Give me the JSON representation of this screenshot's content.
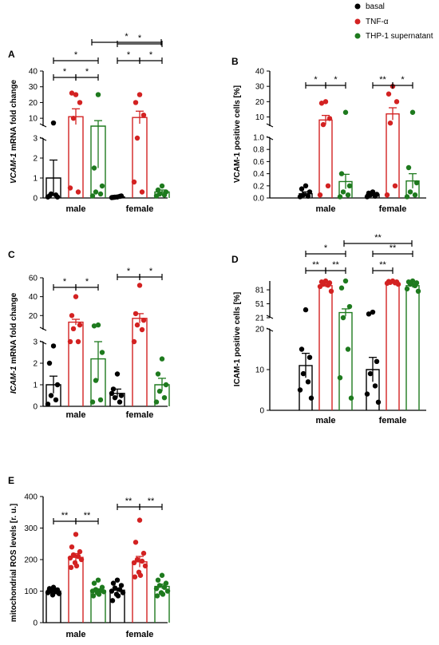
{
  "legend": [
    {
      "label": "basal",
      "color": "#000000"
    },
    {
      "label": "TNF-α",
      "color": "#d32222"
    },
    {
      "label": "THP-1 supernatant",
      "color": "#1e7a1e"
    }
  ],
  "chart_data": [
    {
      "id": "A",
      "type": "scatter",
      "ylabel_italic": "VCAM-1",
      "ylabel": "mRNA fold change",
      "categories": [
        "male",
        "female"
      ],
      "series": [
        {
          "name": "basal",
          "color": "#000000",
          "mean": [
            1.0,
            0.05
          ],
          "sem": [
            0.9,
            0.03
          ],
          "points": [
            [
              7,
              0.1,
              0.05,
              0.2,
              0.15,
              0.05
            ],
            [
              0.05,
              0.03,
              0.1,
              0.04,
              0.08,
              0.02
            ]
          ]
        },
        {
          "name": "TNF-α",
          "color": "#d32222",
          "mean": [
            11,
            10.5
          ],
          "sem": [
            5,
            4
          ],
          "points": [
            [
              25,
              26,
              20,
              10,
              0.3,
              0.5
            ],
            [
              25,
              20,
              12,
              3,
              0.3,
              0.8
            ]
          ]
        },
        {
          "name": "THP-1 supernatant",
          "color": "#1e7a1e",
          "mean": [
            5,
            0.3
          ],
          "sem": [
            3.5,
            0.1
          ],
          "points": [
            [
              25,
              1.5,
              0.6,
              0.3,
              0.2,
              0.1
            ],
            [
              0.6,
              0.4,
              0.3,
              0.2,
              0.15,
              0.1
            ]
          ]
        }
      ],
      "yticks": [
        "0",
        "1",
        "2",
        "3",
        "10",
        "20",
        "30",
        "40"
      ],
      "sig": [
        {
          "from": 0,
          "to": 1,
          "label": "*",
          "level": 0,
          "group": 0
        },
        {
          "from": 1,
          "to": 2,
          "label": "*",
          "level": 0,
          "group": 0
        },
        {
          "from": 0,
          "to": 2,
          "label": "*",
          "level": 1,
          "group": 0
        },
        {
          "from": 0,
          "to": 1,
          "label": "*",
          "level": 0,
          "group": 1
        },
        {
          "from": 1,
          "to": 2,
          "label": "*",
          "level": 0,
          "group": 1
        },
        {
          "from": 0,
          "to": 2,
          "label": "*",
          "level": 1,
          "group": 1
        },
        {
          "label": "*",
          "across": true
        }
      ]
    },
    {
      "id": "B",
      "type": "scatter",
      "ylabel": "VCAM-1 positive cells [%]",
      "categories": [
        "male",
        "female"
      ],
      "series": [
        {
          "name": "basal",
          "color": "#000000",
          "mean": [
            0.07,
            0.06
          ],
          "sem": [
            0.03,
            0.02
          ],
          "points": [
            [
              0.2,
              0.15,
              0.1,
              0.05,
              0.03,
              0.02
            ],
            [
              0.1,
              0.08,
              0.06,
              0.05,
              0.03,
              0.02
            ]
          ]
        },
        {
          "name": "TNF-α",
          "color": "#d32222",
          "mean": [
            8,
            12
          ],
          "sem": [
            3,
            4
          ],
          "points": [
            [
              20,
              19,
              9,
              5,
              0.2,
              0.05
            ],
            [
              30,
              25,
              20,
              6,
              0.2,
              0.05
            ]
          ]
        },
        {
          "name": "THP-1 supernatant",
          "color": "#1e7a1e",
          "mean": [
            0.27,
            0.28
          ],
          "sem": [
            0.12,
            0.12
          ],
          "points": [
            [
              13,
              0.4,
              0.2,
              0.1,
              0.05,
              0.02
            ],
            [
              13,
              0.5,
              0.25,
              0.1,
              0.05,
              0.02
            ]
          ]
        }
      ],
      "yticks": [
        "0.0",
        "0.2",
        "0.4",
        "0.6",
        "0.8",
        "1.0",
        "10",
        "20",
        "30",
        "40"
      ],
      "sig": [
        {
          "from": 0,
          "to": 1,
          "label": "*",
          "level": 0,
          "group": 0
        },
        {
          "from": 1,
          "to": 2,
          "label": "*",
          "level": 0,
          "group": 0
        },
        {
          "from": 0,
          "to": 1,
          "label": "**",
          "level": 0,
          "group": 1
        },
        {
          "from": 1,
          "to": 2,
          "label": "*",
          "level": 0,
          "group": 1
        }
      ]
    },
    {
      "id": "C",
      "type": "scatter",
      "ylabel_italic": "ICAM-1",
      "ylabel": "mRNA fold change",
      "categories": [
        "male",
        "female"
      ],
      "series": [
        {
          "name": "basal",
          "color": "#000000",
          "mean": [
            1.0,
            0.6
          ],
          "sem": [
            0.4,
            0.2
          ],
          "points": [
            [
              2.8,
              2.0,
              1.0,
              0.5,
              0.3,
              0.1
            ],
            [
              1.5,
              0.8,
              0.5,
              0.4,
              0.2,
              0.6
            ]
          ]
        },
        {
          "name": "TNF-α",
          "color": "#d32222",
          "mean": [
            13,
            17
          ],
          "sem": [
            3,
            5
          ],
          "points": [
            [
              40,
              20,
              10,
              6,
              4,
              3
            ],
            [
              52,
              22,
              15,
              10,
              5,
              3
            ]
          ]
        },
        {
          "name": "THP-1 supernatant",
          "color": "#1e7a1e",
          "mean": [
            2.2,
            1.0
          ],
          "sem": [
            1.0,
            0.3
          ],
          "points": [
            [
              10,
              9,
              2.5,
              1.2,
              0.3,
              0.2
            ],
            [
              2.2,
              1.5,
              1.0,
              0.7,
              0.4,
              0.2
            ]
          ]
        }
      ],
      "yticks": [
        "0",
        "1",
        "2",
        "3",
        "20",
        "40",
        "60"
      ],
      "sig": [
        {
          "from": 0,
          "to": 1,
          "label": "*",
          "level": 0,
          "group": 0
        },
        {
          "from": 1,
          "to": 2,
          "label": "*",
          "level": 0,
          "group": 0
        },
        {
          "from": 0,
          "to": 1,
          "label": "*",
          "level": 0,
          "group": 1
        },
        {
          "from": 1,
          "to": 2,
          "label": "*",
          "level": 0,
          "group": 1
        }
      ]
    },
    {
      "id": "D",
      "type": "scatter",
      "ylabel": "ICAM-1 positive cells [%]",
      "categories": [
        "male",
        "female"
      ],
      "series": [
        {
          "name": "basal",
          "color": "#000000",
          "mean": [
            11,
            10
          ],
          "sem": [
            3,
            3
          ],
          "points": [
            [
              38,
              15,
              13,
              9,
              7,
              5,
              3
            ],
            [
              33,
              29,
              12,
              9,
              6,
              4,
              2
            ]
          ]
        },
        {
          "name": "TNF-α",
          "color": "#d32222",
          "mean": [
            90,
            96
          ],
          "sem": [
            3,
            1
          ],
          "points": [
            [
              100,
              98,
              96,
              93,
              91,
              88,
              78
            ],
            [
              100,
              99,
              98,
              97,
              96,
              95,
              93
            ]
          ]
        },
        {
          "name": "THP-1 supernatant",
          "color": "#1e7a1e",
          "mean": [
            32,
            90
          ],
          "sem": [
            8,
            4
          ],
          "points": [
            [
              100,
              85,
              45,
              21,
              15,
              8,
              3
            ],
            [
              100,
              98,
              96,
              93,
              90,
              83,
              78
            ]
          ]
        }
      ],
      "yticks": [
        "0",
        "10",
        "20",
        "21",
        "51",
        "81"
      ],
      "sig": [
        {
          "from": 0,
          "to": 1,
          "label": "**",
          "level": 0,
          "group": 0
        },
        {
          "from": 1,
          "to": 2,
          "label": "**",
          "level": 0,
          "group": 0
        },
        {
          "from": 0,
          "to": 2,
          "label": "*",
          "level": 1,
          "group": 0
        },
        {
          "from": 0,
          "to": 1,
          "label": "**",
          "level": 0,
          "group": 1
        },
        {
          "from": 0,
          "to": 2,
          "label": "**",
          "level": 1,
          "group": 1
        },
        {
          "label": "**",
          "across": true
        }
      ]
    },
    {
      "id": "E",
      "type": "scatter",
      "ylabel": "mitochondrial ROS levels [r. u.]",
      "categories": [
        "male",
        "female"
      ],
      "series": [
        {
          "name": "basal",
          "color": "#000000",
          "mean": [
            100,
            103
          ],
          "sem": [
            4,
            6
          ],
          "points": [
            [
              112,
              108,
              104,
              100,
              98,
              95,
              92,
              88,
              105,
              99
            ],
            [
              135,
              125,
              118,
              110,
              105,
              100,
              95,
              90,
              85,
              70
            ]
          ]
        },
        {
          "name": "TNF-α",
          "color": "#d32222",
          "mean": [
            207,
            193
          ],
          "sem": [
            12,
            17
          ],
          "points": [
            [
              280,
              240,
              225,
              215,
              210,
              205,
              200,
              190,
              180,
              175
            ],
            [
              325,
              255,
              220,
              200,
              195,
              190,
              180,
              160,
              150,
              145
            ]
          ]
        },
        {
          "name": "THP-1 supernatant",
          "color": "#1e7a1e",
          "mean": [
            102,
            115
          ],
          "sem": [
            5,
            7
          ],
          "points": [
            [
              135,
              125,
              112,
              105,
              102,
              100,
              98,
              95,
              90,
              85
            ],
            [
              150,
              135,
              125,
              118,
              112,
              108,
              100,
              95,
              90,
              85
            ]
          ]
        }
      ],
      "yticks": [
        "0",
        "100",
        "200",
        "300",
        "400"
      ],
      "ylim": [
        0,
        400
      ],
      "sig": [
        {
          "from": 0,
          "to": 1,
          "label": "**",
          "level": 0,
          "group": 0
        },
        {
          "from": 1,
          "to": 2,
          "label": "**",
          "level": 0,
          "group": 0
        },
        {
          "from": 0,
          "to": 1,
          "label": "**",
          "level": 0,
          "group": 1
        },
        {
          "from": 1,
          "to": 2,
          "label": "**",
          "level": 0,
          "group": 1
        }
      ]
    }
  ]
}
